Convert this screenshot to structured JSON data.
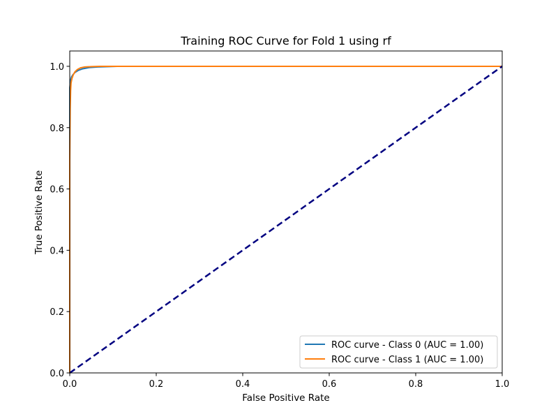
{
  "chart_data": {
    "type": "line",
    "title": "Training ROC Curve for Fold 1 using rf",
    "xlabel": "False Positive Rate",
    "ylabel": "True Positive Rate",
    "xlim": [
      0.0,
      1.0
    ],
    "ylim": [
      0.0,
      1.05
    ],
    "xticks": [
      0.0,
      0.2,
      0.4,
      0.6,
      0.8,
      1.0
    ],
    "yticks": [
      0.0,
      0.2,
      0.4,
      0.6,
      0.8,
      1.0
    ],
    "xtick_labels": [
      "0.0",
      "0.2",
      "0.4",
      "0.6",
      "0.8",
      "1.0"
    ],
    "ytick_labels": [
      "0.0",
      "0.2",
      "0.4",
      "0.6",
      "0.8",
      "1.0"
    ],
    "grid": false,
    "legend_position": "lower-right",
    "series": [
      {
        "name": "ROC curve - Class 0 (AUC = 1.00)",
        "color": "#1f77b4",
        "x": [
          0.0,
          0.0,
          0.002,
          0.004,
          0.007,
          0.012,
          0.02,
          0.03,
          0.045,
          0.065,
          0.11,
          1.0
        ],
        "y": [
          0.0,
          0.93,
          0.955,
          0.965,
          0.972,
          0.98,
          0.987,
          0.992,
          0.996,
          0.998,
          1.0,
          1.0
        ]
      },
      {
        "name": "ROC curve - Class 1 (AUC = 1.00)",
        "color": "#ff7f0e",
        "x": [
          0.0,
          0.0,
          0.001,
          0.002,
          0.003,
          0.005,
          0.008,
          0.012,
          0.018,
          0.025,
          0.035,
          0.05,
          0.07,
          1.0
        ],
        "y": [
          0.0,
          0.69,
          0.86,
          0.92,
          0.945,
          0.96,
          0.972,
          0.982,
          0.99,
          0.995,
          0.998,
          0.999,
          1.0,
          1.0
        ]
      }
    ],
    "reference_line": {
      "x": [
        0.0,
        1.0
      ],
      "y": [
        0.0,
        1.0
      ],
      "color": "#000080",
      "style": "dashed"
    }
  }
}
